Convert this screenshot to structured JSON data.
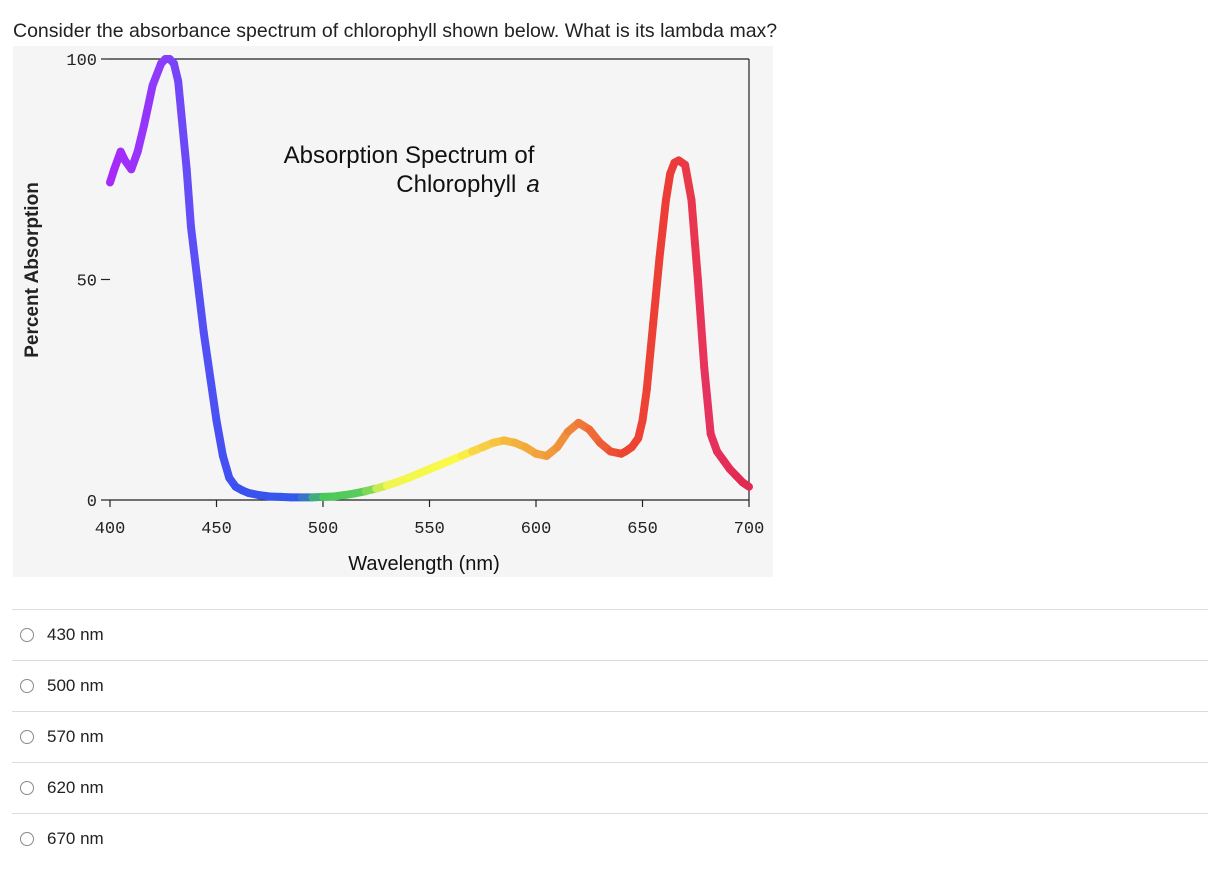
{
  "question": {
    "text": "Consider the absorbance spectrum of chlorophyll shown below. What is its lambda max?"
  },
  "chart_data": {
    "type": "line",
    "title": "Absorption Spectrum of",
    "title_line2": "Chlorophyll",
    "title_italic": "a",
    "xlabel": "Wavelength (nm)",
    "ylabel": "Percent Absorption",
    "xlim": [
      400,
      700
    ],
    "ylim": [
      0,
      100
    ],
    "xticks": [
      "400",
      "450",
      "500",
      "550",
      "600",
      "650",
      "700"
    ],
    "yticks": [
      "0",
      "50",
      "100"
    ],
    "grid": false,
    "series": [
      {
        "x": [
          400,
          402,
          405,
          407,
          410,
          413,
          416,
          420,
          424,
          426,
          428,
          430,
          432,
          434,
          436,
          438,
          441,
          444,
          447,
          450,
          453,
          456,
          459,
          462,
          465,
          470,
          475,
          480,
          485,
          490,
          495,
          500,
          505,
          510,
          515,
          520,
          525,
          530,
          535,
          540,
          545,
          550,
          555,
          560,
          565,
          570,
          575,
          580,
          585,
          590,
          595,
          600,
          605,
          610,
          615,
          620,
          625,
          630,
          635,
          640,
          642,
          645,
          648,
          650,
          652,
          655,
          658,
          661,
          663,
          665,
          667,
          670,
          673,
          676,
          679,
          682,
          685,
          688,
          691,
          694,
          697,
          700
        ],
        "y": [
          72,
          75,
          79,
          77,
          75,
          79,
          85,
          94,
          99,
          100,
          100,
          99,
          95,
          85,
          75,
          62,
          50,
          38,
          28,
          18,
          10,
          5,
          3,
          2.2,
          1.6,
          1.1,
          0.8,
          0.7,
          0.6,
          0.6,
          0.6,
          0.7,
          0.8,
          1.1,
          1.5,
          2,
          2.6,
          3.3,
          4.1,
          5,
          6,
          7,
          8,
          9,
          10,
          11,
          12,
          13,
          13.5,
          13,
          12,
          10.5,
          10,
          12,
          15.5,
          17.5,
          16,
          13,
          11,
          10.5,
          11,
          12,
          14,
          18,
          25,
          40,
          55,
          68,
          74,
          76.5,
          77,
          76,
          68,
          50,
          30,
          15,
          11,
          9,
          7,
          5.5,
          4,
          3
        ]
      }
    ]
  },
  "options": [
    {
      "label": "430 nm"
    },
    {
      "label": "500 nm"
    },
    {
      "label": "570 nm"
    },
    {
      "label": "620 nm"
    },
    {
      "label": "670 nm"
    }
  ]
}
